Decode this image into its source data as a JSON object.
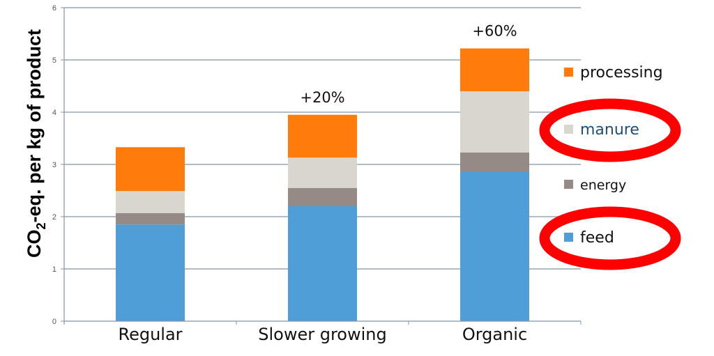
{
  "chart_data": {
    "type": "bar",
    "stacked": true,
    "categories": [
      "Regular",
      "Slower growing",
      "Organic"
    ],
    "series": [
      {
        "name": "feed",
        "color": "#4f9ed8",
        "values": [
          1.85,
          2.2,
          2.86
        ]
      },
      {
        "name": "energy",
        "color": "#958a85",
        "values": [
          0.22,
          0.35,
          0.37
        ]
      },
      {
        "name": "manure",
        "color": "#d9d6d0",
        "values": [
          0.42,
          0.58,
          1.17
        ]
      },
      {
        "name": "processing",
        "color": "#ff7c0c",
        "values": [
          0.84,
          0.82,
          0.82
        ]
      }
    ],
    "annotations": [
      "",
      "+20%",
      "+60%"
    ],
    "ylabel_main": "CO",
    "ylabel_sub": "2",
    "ylabel_rest": "-eq. per kg of product",
    "xlabel": "",
    "ylim": [
      0,
      6
    ],
    "yticks": [
      "0",
      "1",
      "2",
      "3",
      "4",
      "5",
      "6"
    ],
    "grid": true,
    "legend_position": "right",
    "highlighted_legend_items": [
      "manure",
      "feed"
    ],
    "highlight_color": "#ff0000"
  }
}
